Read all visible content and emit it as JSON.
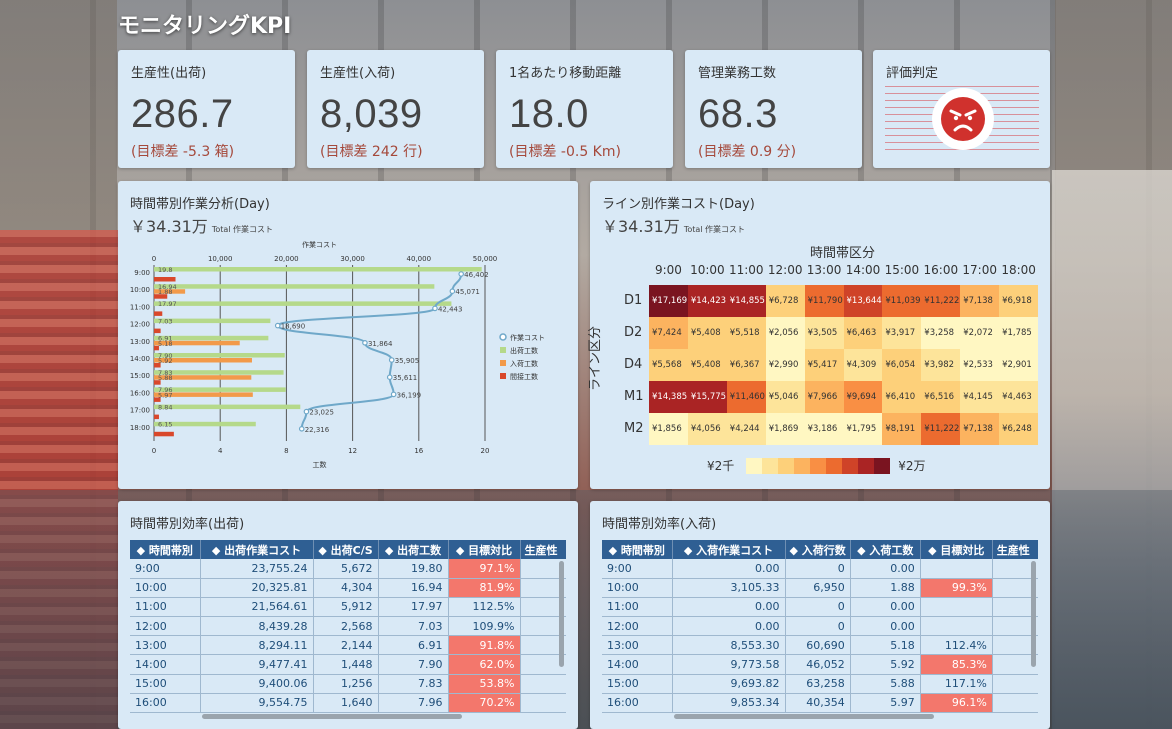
{
  "title": "モニタリングKPI",
  "kpis": [
    {
      "title": "生産性(出荷)",
      "value": "286.7",
      "sub": "(目標差 -5.3 箱)"
    },
    {
      "title": "生産性(入荷)",
      "value": "8,039",
      "sub": "(目標差 242 行)"
    },
    {
      "title": "1名あたり移動距離",
      "value": "18.0",
      "sub": "(目標差 -0.5 Km)"
    },
    {
      "title": "管理業務工数",
      "value": "68.3",
      "sub": "(目標差 0.9 分)"
    }
  ],
  "judge": {
    "title": "評価判定",
    "icon": "angry-face-icon",
    "color": "#d0312d"
  },
  "time_analysis": {
    "title": "時間帯別作業分析(Day)",
    "total": "￥34.31万",
    "total_label": "Total 作業コスト",
    "chart_data": {
      "type": "bar",
      "top_axis_label": "作業コスト",
      "bottom_axis_label": "工数",
      "top_ticks": [
        "0",
        "10,000",
        "20,000",
        "30,000",
        "40,000",
        "50,000"
      ],
      "bottom_ticks": [
        "0",
        "4",
        "8",
        "12",
        "16",
        "20"
      ],
      "xlim_bottom": [
        0,
        20
      ],
      "xlim_top": [
        0,
        50000
      ],
      "categories": [
        "9:00",
        "10:00",
        "11:00",
        "12:00",
        "13:00",
        "14:00",
        "15:00",
        "16:00",
        "17:00",
        "18:00"
      ],
      "series": [
        {
          "name": "作業コスト",
          "type": "line",
          "color": "#6fa8c9",
          "values": [
            46402,
            45071,
            42443,
            18690,
            31864,
            35905,
            35611,
            36199,
            23025,
            22316
          ],
          "labels": [
            "46,402",
            "45,071",
            "42,443",
            "18,690",
            "31,864",
            "35,905",
            "35,611",
            "36,199",
            "23,025",
            "22,316"
          ]
        },
        {
          "name": "出荷工数",
          "type": "bar",
          "color": "#b5d98a",
          "values": [
            19.8,
            16.94,
            17.97,
            7.03,
            6.91,
            7.9,
            7.83,
            7.96,
            8.84,
            6.15
          ],
          "labels": [
            "19.8",
            "16.94",
            "17.97",
            "7.03",
            "6.91",
            "7.90",
            "7.83",
            "7.96",
            "8.84",
            "6.15"
          ]
        },
        {
          "name": "入荷工数",
          "type": "bar",
          "color": "#f29a4a",
          "values": [
            0,
            1.88,
            0,
            0,
            5.18,
            5.92,
            5.88,
            5.97,
            0,
            0
          ],
          "labels": [
            "",
            "1.88",
            "",
            "",
            "5.18",
            "5.92",
            "5.88",
            "5.97",
            "",
            ""
          ]
        },
        {
          "name": "間接工数",
          "type": "bar",
          "color": "#d9482b",
          "values": [
            1.3,
            0.8,
            0.5,
            0.4,
            0.3,
            0.4,
            0.4,
            0.4,
            0.3,
            1.2
          ]
        }
      ],
      "legend": "right"
    }
  },
  "line_cost": {
    "title": "ライン別作業コスト(Day)",
    "total": "￥34.31万",
    "total_label": "Total 作業コスト",
    "x_title": "時間帯区分",
    "y_title": "ライン区分",
    "legend_min": "¥2千",
    "legend_max": "¥2万",
    "legend_colors": [
      "#fff7c2",
      "#fde49a",
      "#fdd07a",
      "#fcb35f",
      "#f98f44",
      "#ec6b2f",
      "#cf4328",
      "#aa2424",
      "#7a1420"
    ],
    "chart_data": {
      "type": "heatmap",
      "columns": [
        "9:00",
        "10:00",
        "11:00",
        "12:00",
        "13:00",
        "14:00",
        "15:00",
        "16:00",
        "17:00",
        "18:00"
      ],
      "rows": [
        "D1",
        "D2",
        "D4",
        "M1",
        "M2"
      ],
      "values": [
        [
          17169,
          14423,
          14855,
          6728,
          11790,
          13644,
          11039,
          11222,
          7138,
          6918
        ],
        [
          7424,
          5408,
          5518,
          2056,
          3505,
          6463,
          3917,
          3258,
          2072,
          1785
        ],
        [
          5568,
          5408,
          6367,
          2990,
          5417,
          4309,
          6054,
          3982,
          2533,
          2901
        ],
        [
          14385,
          15775,
          11460,
          5046,
          7966,
          9694,
          6410,
          6516,
          4145,
          4463
        ],
        [
          1856,
          4056,
          4244,
          1869,
          3186,
          1795,
          8191,
          11222,
          7138,
          6248
        ]
      ],
      "labels": [
        [
          "¥17,169",
          "¥14,423",
          "¥14,855",
          "¥6,728",
          "¥11,790",
          "¥13,644",
          "¥11,039",
          "¥11,222",
          "¥7,138",
          "¥6,918"
        ],
        [
          "¥7,424",
          "¥5,408",
          "¥5,518",
          "¥2,056",
          "¥3,505",
          "¥6,463",
          "¥3,917",
          "¥3,258",
          "¥2,072",
          "¥1,785"
        ],
        [
          "¥5,568",
          "¥5,408",
          "¥6,367",
          "¥2,990",
          "¥5,417",
          "¥4,309",
          "¥6,054",
          "¥3,982",
          "¥2,533",
          "¥2,901"
        ],
        [
          "¥14,385",
          "¥15,775",
          "¥11,460",
          "¥5,046",
          "¥7,966",
          "¥9,694",
          "¥6,410",
          "¥6,516",
          "¥4,145",
          "¥4,463"
        ],
        [
          "¥1,856",
          "¥4,056",
          "¥4,244",
          "¥1,869",
          "¥3,186",
          "¥1,795",
          "¥8,191",
          "¥11,222",
          "¥7,138",
          "¥6,248"
        ]
      ]
    }
  },
  "ship_table": {
    "title": "時間帯別効率(出荷)",
    "headers": [
      "時間帯別",
      "出荷作業コスト",
      "出荷C/S",
      "出荷工数",
      "目標対比",
      "生産性"
    ],
    "rows": [
      [
        "9:00",
        "23,755.24",
        "5,672",
        "19.80",
        "97.1%"
      ],
      [
        "10:00",
        "20,325.81",
        "4,304",
        "16.94",
        "81.9%"
      ],
      [
        "11:00",
        "21,564.61",
        "5,912",
        "17.97",
        "112.5%"
      ],
      [
        "12:00",
        "8,439.28",
        "2,568",
        "7.03",
        "109.9%"
      ],
      [
        "13:00",
        "8,294.11",
        "2,144",
        "6.91",
        "91.8%"
      ],
      [
        "14:00",
        "9,477.41",
        "1,448",
        "7.90",
        "62.0%"
      ],
      [
        "15:00",
        "9,400.06",
        "1,256",
        "7.83",
        "53.8%"
      ],
      [
        "16:00",
        "9,554.75",
        "1,640",
        "7.96",
        "70.2%"
      ]
    ],
    "red_rows": [
      0,
      1,
      4,
      5,
      6,
      7
    ]
  },
  "recv_table": {
    "title": "時間帯別効率(入荷)",
    "headers": [
      "時間帯別",
      "入荷作業コスト",
      "入荷行数",
      "入荷工数",
      "目標対比",
      "生産性"
    ],
    "rows": [
      [
        "9:00",
        "0.00",
        "0",
        "0.00",
        ""
      ],
      [
        "10:00",
        "3,105.33",
        "6,950",
        "1.88",
        "99.3%"
      ],
      [
        "11:00",
        "0.00",
        "0",
        "0.00",
        ""
      ],
      [
        "12:00",
        "0.00",
        "0",
        "0.00",
        ""
      ],
      [
        "13:00",
        "8,553.30",
        "60,690",
        "5.18",
        "112.4%"
      ],
      [
        "14:00",
        "9,773.58",
        "46,052",
        "5.92",
        "85.3%"
      ],
      [
        "15:00",
        "9,693.82",
        "63,258",
        "5.88",
        "117.1%"
      ],
      [
        "16:00",
        "9,853.34",
        "40,354",
        "5.97",
        "96.1%"
      ]
    ],
    "red_rows": [
      1,
      5,
      7
    ]
  }
}
